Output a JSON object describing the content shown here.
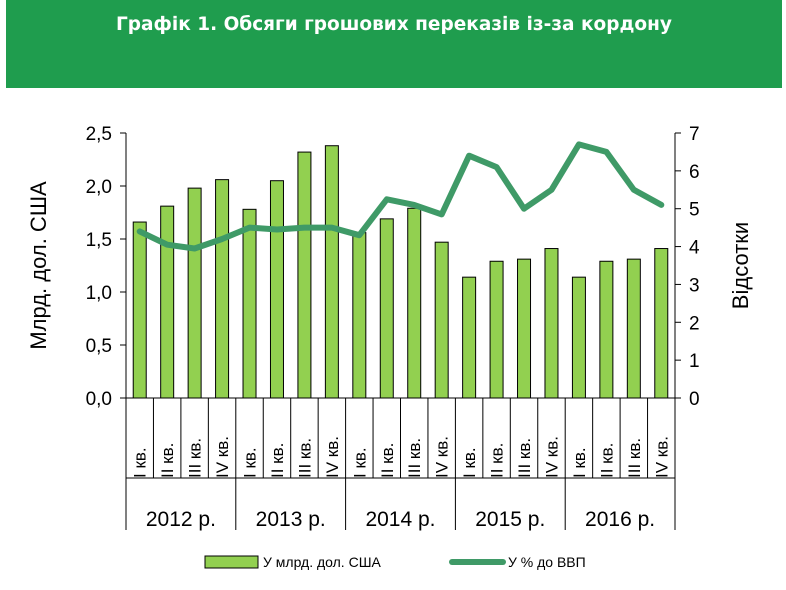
{
  "header": {
    "title": "Графік 1. Обсяги грошових переказів із-за кордону"
  },
  "colors": {
    "header_bg": "#1f9d4e",
    "bar_fill": "#92d050",
    "bar_stroke": "#000000",
    "line": "#3f9a67"
  },
  "chart_data": {
    "type": "bar+line",
    "categories": [
      "I кв.",
      "II кв.",
      "III кв.",
      "IV кв.",
      "I кв.",
      "II кв.",
      "III кв.",
      "IV кв.",
      "I кв.",
      "II кв.",
      "III кв.",
      "IV кв.",
      "I кв.",
      "II кв.",
      "III кв.",
      "IV кв.",
      "I кв.",
      "II кв.",
      "III кв.",
      "IV кв."
    ],
    "groups": [
      "2012 р.",
      "2013 р.",
      "2014 р.",
      "2015 р.",
      "2016 р."
    ],
    "series": [
      {
        "name": "У млрд. дол. США",
        "type": "bar",
        "axis": "left",
        "values": [
          1.66,
          1.81,
          1.98,
          2.06,
          1.78,
          2.05,
          2.32,
          2.38,
          1.56,
          1.69,
          1.79,
          1.47,
          1.14,
          1.29,
          1.31,
          1.41,
          1.14,
          1.29,
          1.31,
          1.41
        ]
      },
      {
        "name": "У % до ВВП",
        "type": "line",
        "axis": "right",
        "values": [
          4.4,
          4.05,
          3.95,
          4.2,
          4.5,
          4.45,
          4.5,
          4.5,
          4.3,
          5.25,
          5.1,
          4.85,
          6.4,
          6.1,
          5.0,
          5.5,
          6.7,
          6.5,
          5.5,
          5.1
        ]
      }
    ],
    "ylabel": "Млрд. дол. США",
    "y2label": "Відсотки",
    "ylim": [
      0,
      2.5
    ],
    "y2lim": [
      0,
      7
    ],
    "yticks": [
      "0,0",
      "0,5",
      "1,0",
      "1,5",
      "2,0",
      "2,5"
    ],
    "y2ticks": [
      "0",
      "1",
      "2",
      "3",
      "4",
      "5",
      "6",
      "7"
    ],
    "legend_position": "bottom",
    "grid": false
  }
}
